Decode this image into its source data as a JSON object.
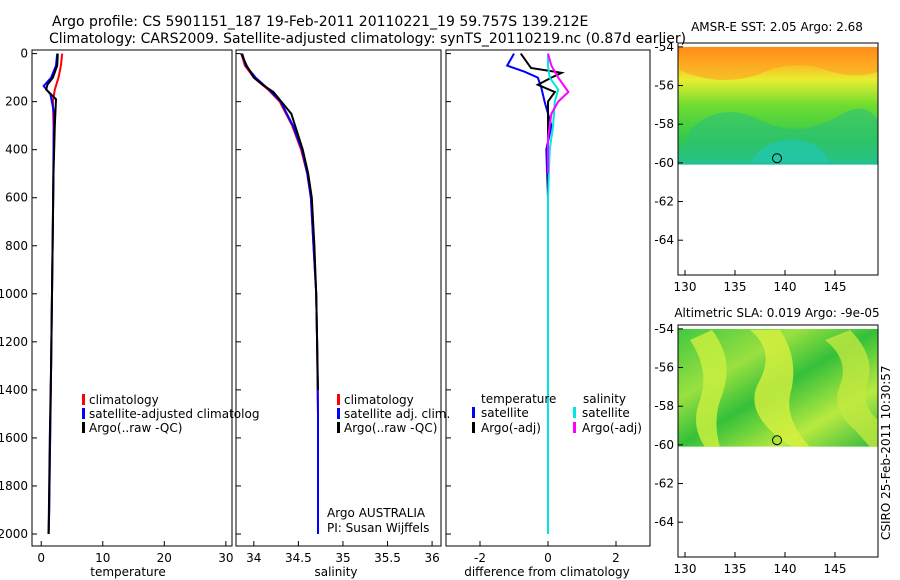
{
  "figure_title": {
    "line1": "Argo profile: CS 5901151_187 19-Feb-2011 20110221_19 59.757S 139.212E",
    "line2": "Climatology: CARS2009. Satellite-adjusted climatology: synTS_20110219.nc (0.87d earlier)"
  },
  "credit": "CSIRO 25-Feb-2011 10:30:57",
  "colors": {
    "climatology": "#ff0000",
    "satellite": "#0000ff",
    "argo": "#000000",
    "sat_diff_s": "#00e5e5",
    "argo_diff_s": "#ff00ff"
  },
  "chart_data": [
    {
      "id": "temperature",
      "type": "line",
      "xlabel": "temperature",
      "xlim": [
        -1.5,
        31
      ],
      "ylim": [
        2050,
        -15
      ],
      "xticks": [
        0,
        10,
        20,
        30
      ],
      "yticks": [
        0,
        200,
        400,
        600,
        800,
        1000,
        1200,
        1400,
        1600,
        1800,
        2000
      ],
      "legend": [
        "climatology",
        "satellite-adjusted climatolog",
        "Argo(..raw -QC)"
      ],
      "series": [
        {
          "name": "climatology",
          "color": "#ff0000",
          "x": [
            3.4,
            3.2,
            2.8,
            2.2,
            1.9,
            2.0,
            2.0,
            1.9,
            1.8,
            1.7,
            1.6,
            1.5,
            1.4,
            1.3,
            1.2
          ],
          "y": [
            0,
            50,
            100,
            150,
            200,
            300,
            500,
            700,
            900,
            1100,
            1300,
            1500,
            1700,
            1900,
            2000
          ]
        },
        {
          "name": "satellite-adjusted climatology",
          "color": "#0000ff",
          "x": [
            2.6,
            2.4,
            1.6,
            0.4,
            1.5,
            2.1,
            2.0,
            1.9,
            1.8,
            1.7,
            1.6,
            1.5,
            1.4,
            1.3,
            1.2
          ],
          "y": [
            0,
            50,
            100,
            135,
            170,
            250,
            400,
            700,
            900,
            1100,
            1300,
            1500,
            1700,
            1900,
            2000
          ]
        },
        {
          "name": "Argo(..raw -QC)",
          "color": "#000000",
          "x": [
            2.7,
            2.6,
            1.9,
            1.0,
            0.8,
            2.4,
            2.2,
            2.0,
            1.9,
            1.8,
            1.7,
            1.6,
            1.4,
            1.3,
            1.2
          ],
          "y": [
            0,
            50,
            100,
            130,
            150,
            190,
            300,
            500,
            700,
            900,
            1100,
            1300,
            1600,
            1800,
            2000
          ]
        }
      ]
    },
    {
      "id": "salinity",
      "type": "line",
      "xlabel": "salinity",
      "xlim": [
        33.8,
        36.1
      ],
      "ylim": [
        2050,
        -15
      ],
      "xticks": [
        34,
        34.5,
        35,
        35.5,
        36
      ],
      "xticklabels": [
        "34",
        "34.5",
        "35",
        "35.5",
        "36"
      ],
      "yticks": [
        0,
        200,
        400,
        600,
        800,
        1000,
        1200,
        1400,
        1600,
        1800,
        2000
      ],
      "legend": [
        "climatology",
        "satellite adj. clim.",
        "Argo(..raw -QC)"
      ],
      "annotation": [
        "Argo AUSTRALIA",
        "PI: Susan Wijffels"
      ],
      "series": [
        {
          "name": "climatology",
          "color": "#ff0000",
          "x": [
            33.86,
            33.9,
            34.0,
            34.16,
            34.29,
            34.43,
            34.53,
            34.6,
            34.64,
            34.67,
            34.7,
            34.71,
            34.72,
            34.72,
            34.72
          ],
          "y": [
            0,
            50,
            100,
            150,
            200,
            300,
            400,
            500,
            600,
            800,
            1000,
            1200,
            1500,
            1800,
            2000
          ]
        },
        {
          "name": "satellite adj. clim.",
          "color": "#0000ff",
          "x": [
            33.87,
            33.91,
            34.02,
            34.17,
            34.3,
            34.44,
            34.54,
            34.6,
            34.64,
            34.67,
            34.7,
            34.71,
            34.72,
            34.72,
            34.72
          ],
          "y": [
            0,
            50,
            100,
            150,
            200,
            300,
            400,
            500,
            600,
            800,
            1000,
            1200,
            1500,
            1800,
            2000
          ]
        },
        {
          "name": "Argo(..raw -QC)",
          "color": "#000000",
          "x": [
            33.86,
            33.92,
            34.0,
            34.1,
            34.22,
            34.42,
            34.55,
            34.61,
            34.65,
            34.68,
            34.7,
            34.71,
            34.72
          ],
          "y": [
            0,
            50,
            100,
            130,
            160,
            250,
            400,
            500,
            600,
            800,
            1000,
            1200,
            1400
          ]
        }
      ]
    },
    {
      "id": "difference",
      "type": "line",
      "xlabel": "difference from climatology",
      "xlim": [
        -3,
        3
      ],
      "ylim": [
        2050,
        -15
      ],
      "xticks": [
        -2,
        0,
        2
      ],
      "yticks": [
        0,
        200,
        400,
        600,
        800,
        1000,
        1200,
        1400,
        1600,
        1800,
        2000
      ],
      "legend_groups": [
        {
          "heading": "temperature",
          "items": [
            "satellite",
            "Argo(-adj)"
          ]
        },
        {
          "heading": "salinity",
          "items": [
            "satellite",
            "Argo(-adj)"
          ]
        }
      ],
      "series": [
        {
          "name": "temperature satellite",
          "color": "#0000ff",
          "x": [
            -1.0,
            -1.2,
            -0.7,
            -0.3,
            -0.2,
            -0.1,
            0.1,
            -0.05,
            0.0,
            0.0,
            0.0,
            0.0
          ],
          "y": [
            0,
            50,
            75,
            100,
            140,
            200,
            300,
            400,
            600,
            1000,
            1500,
            2000
          ]
        },
        {
          "name": "temperature Argo(-adj)",
          "color": "#000000",
          "x": [
            -0.8,
            -0.6,
            -0.5,
            0.4,
            0.1,
            -0.3,
            0.2,
            0.0,
            0.0,
            0.0,
            0.0
          ],
          "y": [
            0,
            40,
            60,
            80,
            100,
            130,
            160,
            200,
            400,
            600,
            700
          ]
        },
        {
          "name": "salinity satellite",
          "color": "#00e5e5",
          "x": [
            0.0,
            0.0,
            0.05,
            0.3,
            0.2,
            0.15,
            0.05,
            0.0,
            0.0,
            0.0,
            0.0
          ],
          "y": [
            0,
            50,
            100,
            150,
            200,
            300,
            400,
            600,
            1000,
            1500,
            2000
          ]
        },
        {
          "name": "salinity Argo(-adj)",
          "color": "#ff00ff",
          "x": [
            0.0,
            0.1,
            0.3,
            0.6,
            0.3,
            0.1,
            0.0,
            0.0
          ],
          "y": [
            0,
            50,
            100,
            160,
            200,
            250,
            350,
            500
          ]
        }
      ]
    },
    {
      "id": "sst_map",
      "type": "heatmap",
      "title": "AMSR-E SST: 2.05 Argo: 2.68",
      "xlim": [
        129.3,
        149.3
      ],
      "ylim": [
        -65.8,
        -53.8
      ],
      "xticks": [
        130,
        135,
        140,
        145
      ],
      "yticks": [
        -54,
        -56,
        -58,
        -60,
        -62,
        -64
      ],
      "data_extent": {
        "lat": [
          -60.1,
          -54
        ]
      },
      "marker": {
        "lon": 139.2,
        "lat": -59.76
      }
    },
    {
      "id": "sla_map",
      "type": "heatmap",
      "title": "Altimetric SLA: 0.019 Argo: -9e-05",
      "xlim": [
        129.3,
        149.3
      ],
      "ylim": [
        -65.8,
        -53.8
      ],
      "xticks": [
        130,
        135,
        140,
        145
      ],
      "yticks": [
        -54,
        -56,
        -58,
        -60,
        -62,
        -64
      ],
      "data_extent": {
        "lat": [
          -60.1,
          -54
        ]
      },
      "marker": {
        "lon": 139.2,
        "lat": -59.76
      }
    }
  ]
}
